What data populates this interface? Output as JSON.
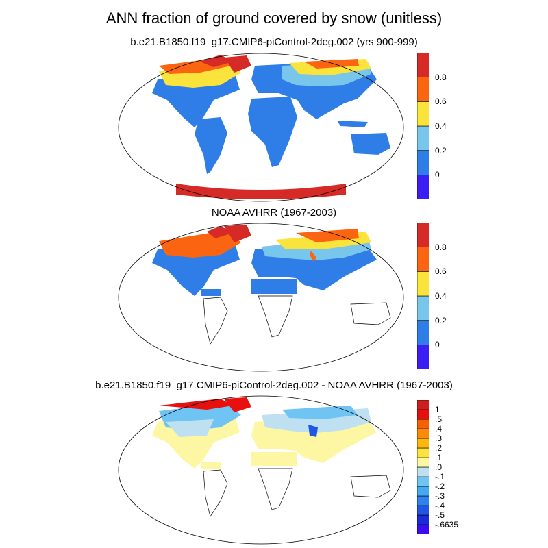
{
  "title": "ANN fraction of ground covered by snow (unitless)",
  "panels": [
    {
      "title": "b.e21.B1850.f19_g17.CMIP6-piControl-2deg.002 (yrs 900-999)",
      "colorbar": {
        "colors": [
          "#3c1ef5",
          "#2f7ee8",
          "#79c6ec",
          "#fae33a",
          "#fb6410",
          "#d62a26"
        ],
        "labels": [
          "0",
          "0.2",
          "0.4",
          "0.6",
          "0.8"
        ]
      }
    },
    {
      "title": "NOAA AVHRR (1967-2003)",
      "colorbar": {
        "colors": [
          "#3c1ef5",
          "#2f7ee8",
          "#79c6ec",
          "#fae33a",
          "#fb6410",
          "#d62a26"
        ],
        "labels": [
          "0",
          "0.2",
          "0.4",
          "0.6",
          "0.8"
        ]
      }
    },
    {
      "title": "b.e21.B1850.f19_g17.CMIP6-piControl-2deg.002 - NOAA AVHRR (1967-2003)",
      "colorbar": {
        "colors": [
          "#3c0cf0",
          "#1b2bd6",
          "#2155e6",
          "#2f82ee",
          "#44a8f2",
          "#6fc4f3",
          "#bfe0f0",
          "#fdf7a3",
          "#fbe23c",
          "#fdb60c",
          "#fb8a06",
          "#f66004",
          "#e80f0f",
          "#ce1f1f"
        ],
        "labels": [
          "-.6635",
          "-.5",
          "-.4",
          "-.3",
          "-.2",
          "-.1",
          ".0",
          ".1",
          ".2",
          ".3",
          ".4",
          ".5",
          "1"
        ]
      }
    }
  ]
}
